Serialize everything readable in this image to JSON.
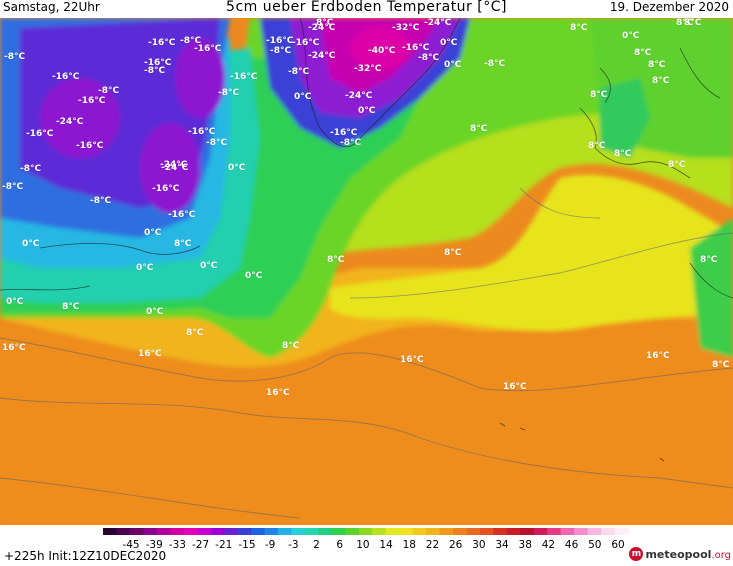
{
  "header": {
    "left": "Samstag, 22Uhr",
    "title": "5cm ueber Erdboden Temperatur [°C]",
    "date": "19. Dezember 2020"
  },
  "footer": {
    "run": "+225h  Init:12Z10DEC2020",
    "logo_brand": "meteopool",
    "logo_domain": ".org"
  },
  "colorbar": {
    "ticks": [
      "-45",
      "-39",
      "-33",
      "-27",
      "-21",
      "-15",
      "-9",
      "-3",
      "2",
      "6",
      "10",
      "14",
      "18",
      "22",
      "26",
      "30",
      "34",
      "38",
      "42",
      "46",
      "50",
      "60"
    ],
    "colors": [
      "#2a0030",
      "#4d004f",
      "#6b006b",
      "#8b008b",
      "#b0009c",
      "#d1009f",
      "#e300b6",
      "#c800d0",
      "#9a00d6",
      "#6a1fd1",
      "#3a3fd6",
      "#1f62e0",
      "#1f86e6",
      "#24aee6",
      "#2acfd6",
      "#22d6b0",
      "#22cf84",
      "#33cf4f",
      "#5cd230",
      "#8ad91f",
      "#b9e11f",
      "#e0e81f",
      "#f0e11f",
      "#f2cb1a",
      "#f1b41a",
      "#ef9a1c",
      "#ec8220",
      "#e96b22",
      "#e35023",
      "#d63023",
      "#c81a27",
      "#b8102f",
      "#d01a5a",
      "#e43a86",
      "#ef66b2",
      "#f48ecf",
      "#f7b7e2",
      "#fbdaf0",
      "#fdeef8"
    ]
  },
  "labels": [
    {
      "t": "-16°C"
    },
    {
      "t": "-8°C"
    },
    {
      "t": "-8°C"
    },
    {
      "t": "-16°C"
    },
    {
      "t": "-16°C"
    },
    {
      "t": "-8°C"
    },
    {
      "t": "-16°C"
    },
    {
      "t": "-8°C"
    },
    {
      "t": "-16°C"
    },
    {
      "t": "-24°C"
    },
    {
      "t": "-8°C"
    },
    {
      "t": "-16°C"
    },
    {
      "t": "-16°C"
    },
    {
      "t": "-8°C"
    },
    {
      "t": "-24°C"
    },
    {
      "t": "-16°C"
    },
    {
      "t": "-16°C"
    },
    {
      "t": "-16°C"
    },
    {
      "t": "-8°C"
    },
    {
      "t": "-8°C"
    },
    {
      "t": "-8°C"
    },
    {
      "t": "-24°C"
    },
    {
      "t": "-16°C"
    },
    {
      "t": "-16°C"
    },
    {
      "t": "-24°C"
    },
    {
      "t": "-16°C"
    },
    {
      "t": "-8°C"
    },
    {
      "t": "-24°C"
    },
    {
      "t": "-32°C"
    },
    {
      "t": "-24°C"
    },
    {
      "t": "-16°C"
    },
    {
      "t": "0°C"
    },
    {
      "t": "-40°C"
    },
    {
      "t": "-8°C"
    },
    {
      "t": "0°C"
    },
    {
      "t": "-8°C"
    },
    {
      "t": "-32°C"
    },
    {
      "t": "-24°C"
    },
    {
      "t": "0°C"
    },
    {
      "t": "-16°C"
    },
    {
      "t": "-8°C"
    },
    {
      "t": "8°C"
    },
    {
      "t": "-8°C"
    },
    {
      "t": "0°C"
    },
    {
      "t": "8°C"
    },
    {
      "t": "8°C"
    },
    {
      "t": "8°C"
    },
    {
      "t": "8°C"
    },
    {
      "t": "8°C"
    },
    {
      "t": "8°C"
    },
    {
      "t": "8°C"
    },
    {
      "t": "0°C"
    },
    {
      "t": "0°C"
    },
    {
      "t": "0°C"
    },
    {
      "t": "0°C"
    },
    {
      "t": "0°C"
    },
    {
      "t": "8°C"
    },
    {
      "t": "0°C"
    },
    {
      "t": "0°C"
    },
    {
      "t": "0°C"
    },
    {
      "t": "8°C"
    },
    {
      "t": "8°C"
    },
    {
      "t": "8°C"
    },
    {
      "t": "8°C"
    },
    {
      "t": "8°C"
    },
    {
      "t": "8°C"
    },
    {
      "t": "8°C"
    },
    {
      "t": "16°C"
    },
    {
      "t": "16°C"
    },
    {
      "t": "16°C"
    },
    {
      "t": "16°C"
    },
    {
      "t": "16°C"
    },
    {
      "t": "16°C"
    },
    {
      "t": "8°C"
    },
    {
      "t": "8°C"
    },
    {
      "t": "8°C"
    },
    {
      "t": "0°C"
    },
    {
      "t": "8°C"
    }
  ]
}
